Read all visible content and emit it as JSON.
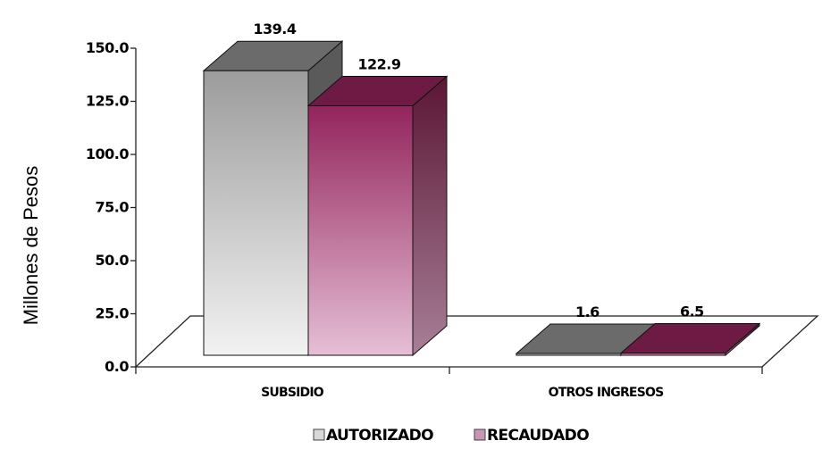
{
  "chart_data": {
    "type": "bar",
    "title": "",
    "xlabel": "",
    "ylabel": "Millones de Pesos",
    "ylim": [
      0,
      150
    ],
    "yticks": [
      "0.0",
      "25.0",
      "50.0",
      "75.0",
      "100.0",
      "125.0",
      "150.0"
    ],
    "categories": [
      "SUBSIDIO",
      "OTROS INGRESOS"
    ],
    "series": [
      {
        "name": "AUTORIZADO",
        "values": [
          139.4,
          1.6
        ],
        "labels": [
          "139.4",
          "1.6"
        ],
        "color": "#9a9a9a"
      },
      {
        "name": "RECAUDADO",
        "values": [
          122.9,
          6.5
        ],
        "labels": [
          "122.9",
          "6.5"
        ],
        "color": "#8b2a5a"
      }
    ],
    "legend_position": "bottom",
    "grid": false,
    "style": "3d-column"
  }
}
